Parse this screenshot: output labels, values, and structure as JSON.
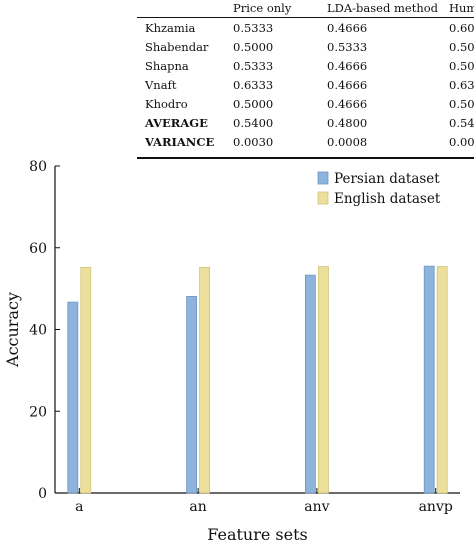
{
  "table": {
    "columns": [
      "Price only",
      "LDA-based method",
      "Hum"
    ],
    "rows": [
      {
        "name": "Khzamia",
        "values": [
          "0.5333",
          "0.4666",
          "0.60"
        ]
      },
      {
        "name": "Shabendar",
        "values": [
          "0.5000",
          "0.5333",
          "0.50"
        ]
      },
      {
        "name": "Shapna",
        "values": [
          "0.5333",
          "0.4666",
          "0.50"
        ]
      },
      {
        "name": "Vnaft",
        "values": [
          "0.6333",
          "0.4666",
          "0.63"
        ]
      },
      {
        "name": "Khodro",
        "values": [
          "0.5000",
          "0.4666",
          "0.50"
        ]
      },
      {
        "name": "AVERAGE",
        "values": [
          "0.5400",
          "0.4800",
          "0.54"
        ],
        "bold": true
      },
      {
        "name": "VARIANCE",
        "values": [
          "0.0030",
          "0.0008",
          "0.00"
        ],
        "bold": true
      }
    ]
  },
  "chart_data": {
    "type": "bar",
    "title": "",
    "xlabel": "Feature sets",
    "ylabel": "Accuracy",
    "categories": [
      "a",
      "an",
      "anv",
      "anvp"
    ],
    "ylim": [
      0,
      80
    ],
    "yticks": [
      0,
      20,
      40,
      60,
      80
    ],
    "grid": false,
    "legend_position": "top-right",
    "series": [
      {
        "name": "Persian dataset",
        "values": [
          46.7,
          48.1,
          53.3,
          55.5
        ],
        "color": "#8eb4dc",
        "edge": "#6f97c5"
      },
      {
        "name": "English dataset",
        "values": [
          55.2,
          55.2,
          55.4,
          55.4
        ],
        "color": "#ecdf9c",
        "edge": "#d2c47a"
      }
    ]
  }
}
